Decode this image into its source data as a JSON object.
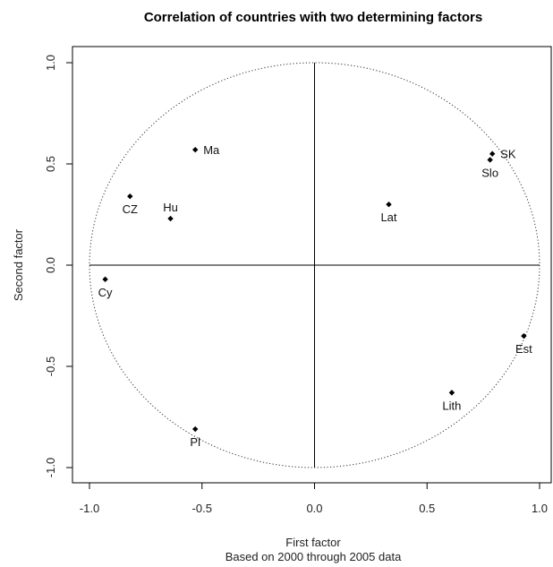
{
  "chart_data": {
    "type": "scatter",
    "title": "Correlation of countries with two determining factors",
    "xlabel": "First factor",
    "xsublabel": "Based on 2000 through 2005 data",
    "ylabel": "Second factor",
    "xlim": [
      -1.0,
      1.0
    ],
    "ylim": [
      -1.0,
      1.0
    ],
    "x_ticks": [
      "-1.0",
      "-0.5",
      "0.0",
      "0.5",
      "1.0"
    ],
    "y_ticks": [
      "-1.0",
      "-0.5",
      "0.0",
      "0.5",
      "1.0"
    ],
    "unit_circle": true,
    "axes_cross_at_origin": true,
    "marker_color": "#000000",
    "points": [
      {
        "label": "Ma",
        "x": -0.53,
        "y": 0.57,
        "label_side": "right"
      },
      {
        "label": "CZ",
        "x": -0.82,
        "y": 0.34,
        "label_side": "below"
      },
      {
        "label": "Hu",
        "x": -0.64,
        "y": 0.23,
        "label_side": "above"
      },
      {
        "label": "Cy",
        "x": -0.93,
        "y": -0.07,
        "label_side": "below"
      },
      {
        "label": "Pl",
        "x": -0.53,
        "y": -0.81,
        "label_side": "below"
      },
      {
        "label": "SK",
        "x": 0.79,
        "y": 0.55,
        "label_side": "right"
      },
      {
        "label": "Slo",
        "x": 0.78,
        "y": 0.52,
        "label_side": "below"
      },
      {
        "label": "Lat",
        "x": 0.33,
        "y": 0.3,
        "label_side": "below"
      },
      {
        "label": "Est",
        "x": 0.93,
        "y": -0.35,
        "label_side": "below"
      },
      {
        "label": "Lith",
        "x": 0.61,
        "y": -0.63,
        "label_side": "below"
      }
    ]
  }
}
